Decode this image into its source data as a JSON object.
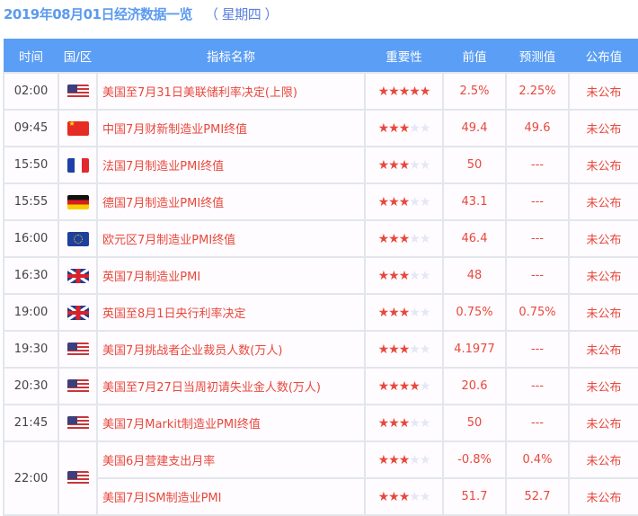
{
  "title": "2019年08月01日经济数据一览",
  "weekday": "（ 星期四 ）",
  "columns": [
    "时间",
    "国/区",
    "指标名称",
    "重要性",
    "前值",
    "预测值",
    "公布值"
  ],
  "colors": {
    "header": "#5b9ef5",
    "accent": "#e8483c"
  },
  "rows": [
    {
      "time": "02:00",
      "flag": "us",
      "name": "美国至7月31日美联储利率决定(上限)",
      "stars": 5,
      "prev": "2.5%",
      "forecast": "2.25%",
      "actual": "未公布"
    },
    {
      "time": "09:45",
      "flag": "cn",
      "name": "中国7月财新制造业PMI终值",
      "stars": 3,
      "prev": "49.4",
      "forecast": "49.6",
      "actual": "未公布"
    },
    {
      "time": "15:50",
      "flag": "fr",
      "name": "法国7月制造业PMI终值",
      "stars": 3,
      "prev": "50",
      "forecast": "---",
      "actual": "未公布"
    },
    {
      "time": "15:55",
      "flag": "de",
      "name": "德国7月制造业PMI终值",
      "stars": 3,
      "prev": "43.1",
      "forecast": "---",
      "actual": "未公布"
    },
    {
      "time": "16:00",
      "flag": "eu",
      "name": "欧元区7月制造业PMI终值",
      "stars": 3,
      "prev": "46.4",
      "forecast": "---",
      "actual": "未公布"
    },
    {
      "time": "16:30",
      "flag": "uk",
      "name": "英国7月制造业PMI",
      "stars": 3,
      "prev": "48",
      "forecast": "---",
      "actual": "未公布"
    },
    {
      "time": "19:00",
      "flag": "uk",
      "name": "英国至8月1日央行利率决定",
      "stars": 3,
      "prev": "0.75%",
      "forecast": "0.75%",
      "actual": "未公布"
    },
    {
      "time": "19:30",
      "flag": "us",
      "name": "美国7月挑战者企业裁员人数(万人)",
      "stars": 3,
      "prev": "4.1977",
      "forecast": "---",
      "actual": "未公布"
    },
    {
      "time": "20:30",
      "flag": "us",
      "name": "美国至7月27日当周初请失业金人数(万人)",
      "stars": 4,
      "prev": "20.6",
      "forecast": "---",
      "actual": "未公布"
    },
    {
      "time": "21:45",
      "flag": "us",
      "name": "美国7月Markit制造业PMI终值",
      "stars": 3,
      "prev": "50",
      "forecast": "---",
      "actual": "未公布"
    },
    {
      "time": "22:00",
      "flag": "us",
      "name": "美国6月营建支出月率",
      "stars": 3,
      "prev": "-0.8%",
      "forecast": "0.4%",
      "actual": "未公布"
    },
    {
      "time": "",
      "flag": "",
      "name": "美国7月ISM制造业PMI",
      "stars": 3,
      "prev": "51.7",
      "forecast": "52.7",
      "actual": "未公布"
    }
  ]
}
